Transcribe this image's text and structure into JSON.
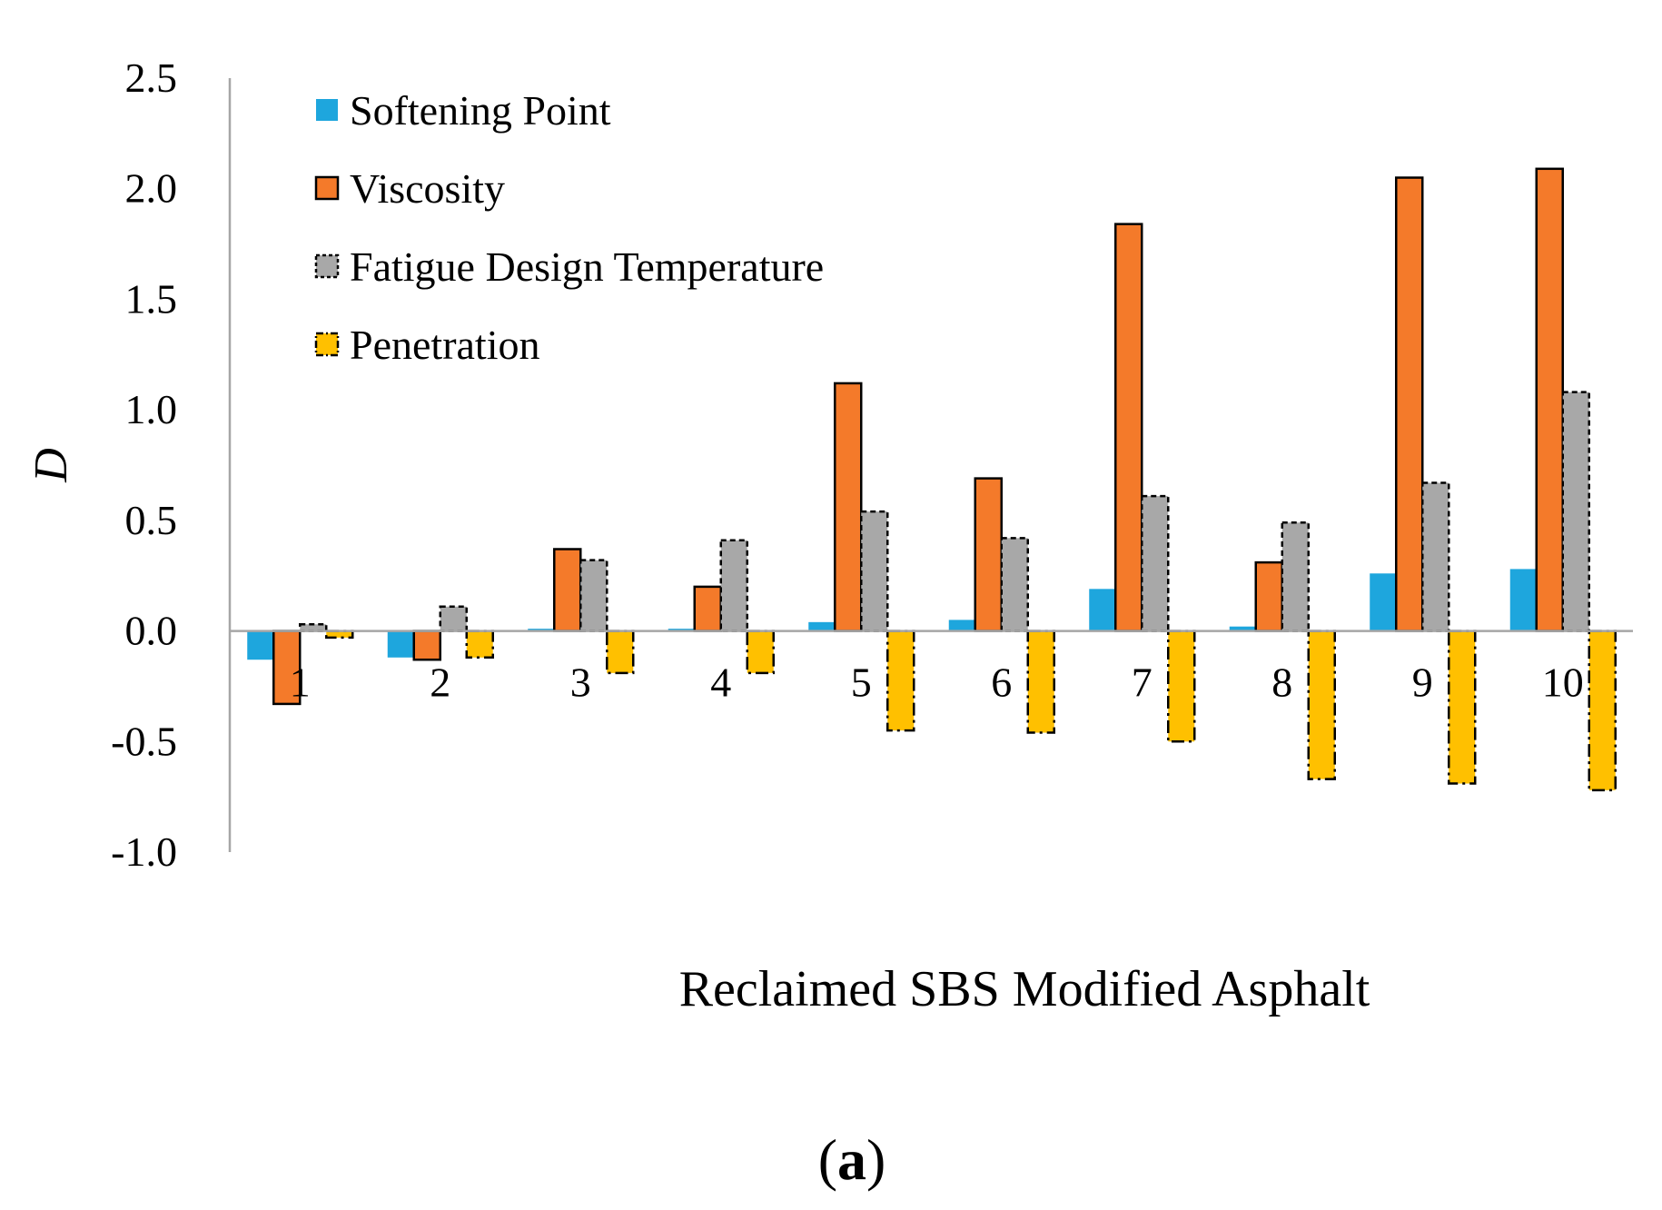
{
  "chart_data": {
    "type": "bar",
    "title": "",
    "xlabel": "Reclaimed SBS Modified Asphalt",
    "ylabel": "D",
    "ylim": [
      -1.0,
      2.5
    ],
    "yticks": [
      "2.5",
      "2.0",
      "1.5",
      "1.0",
      "0.5",
      "0.0",
      "-0.5",
      "-1.0"
    ],
    "categories": [
      "1",
      "2",
      "3",
      "4",
      "5",
      "6",
      "7",
      "8",
      "9",
      "10"
    ],
    "legend_position": "top-left",
    "series": [
      {
        "name": "Softening Point",
        "color": "#1ea6dd",
        "values": [
          -0.13,
          -0.12,
          0.01,
          0.01,
          0.04,
          0.05,
          0.19,
          0.02,
          0.26,
          0.28
        ]
      },
      {
        "name": "Viscosity",
        "color": "#f47a2a",
        "values": [
          -0.33,
          -0.13,
          0.37,
          0.2,
          1.12,
          0.69,
          1.84,
          0.31,
          2.05,
          2.09
        ]
      },
      {
        "name": "Fatigue Design Temperature",
        "color": "#a8a8a8",
        "values": [
          0.03,
          0.11,
          0.32,
          0.41,
          0.54,
          0.42,
          0.61,
          0.49,
          0.67,
          1.08
        ]
      },
      {
        "name": "Penetration",
        "color": "#ffc000",
        "values": [
          -0.03,
          -0.12,
          -0.19,
          -0.19,
          -0.45,
          -0.46,
          -0.5,
          -0.67,
          -0.69,
          -0.72
        ]
      }
    ],
    "panel_label": {
      "open": "(",
      "letter": "a",
      "close": ")"
    }
  }
}
